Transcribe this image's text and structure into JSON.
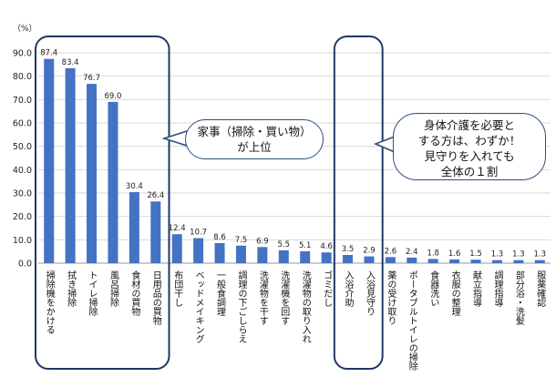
{
  "chart_data": {
    "type": "bar",
    "y_unit": "（%）",
    "ylim": [
      0,
      90
    ],
    "yticks": [
      "0.0",
      "10.0",
      "20.0",
      "30.0",
      "40.0",
      "50.0",
      "60.0",
      "70.0",
      "80.0",
      "90.0"
    ],
    "grid": true,
    "bar_color": "#4472c4",
    "categories": [
      "掃除機をかける",
      "拭き掃除",
      "トイレ掃除",
      "風呂掃除",
      "食材の買物",
      "日用品の買物",
      "布団干し",
      "ベッドメイキング",
      "一般食調理",
      "調理の下ごしらえ",
      "洗濯物を干す",
      "洗濯機を回す",
      "洗濯物の取り入れ",
      "ゴミだし",
      "入浴介助",
      "入浴見守り",
      "薬の受け取り",
      "ポータブルトイレの掃除",
      "食器洗い",
      "衣服の整理",
      "献立指導",
      "調理指導",
      "部分浴・洗髪",
      "服薬確認"
    ],
    "values": [
      87.4,
      83.4,
      76.7,
      69.0,
      30.4,
      26.4,
      12.4,
      10.7,
      8.6,
      7.5,
      6.9,
      5.5,
      5.1,
      4.6,
      3.5,
      2.9,
      2.6,
      2.4,
      1.8,
      1.6,
      1.5,
      1.3,
      1.3,
      1.3
    ],
    "value_labels": [
      "87.4",
      "83.4",
      "76.7",
      "69.0",
      "30.4",
      "26.4",
      "12.4",
      "10.7",
      "8.6",
      "7.5",
      "6.9",
      "5.5",
      "5.1",
      "4.6",
      "3.5",
      "2.9",
      "2.6",
      "2.4",
      "1.8",
      "1.6",
      "1.5",
      "1.3",
      "1.3",
      "1.3"
    ],
    "highlight_groups": [
      [
        0,
        5
      ],
      [
        14,
        15
      ]
    ],
    "highlight_color": "#1f3864",
    "annotations": [
      {
        "id": "left",
        "text": "家事（掃除・買い物）\nが上位"
      },
      {
        "id": "right",
        "text": "身体介護を必要と\nする方は、わずか！\n見守りを入れても\n全体の１割"
      }
    ]
  }
}
